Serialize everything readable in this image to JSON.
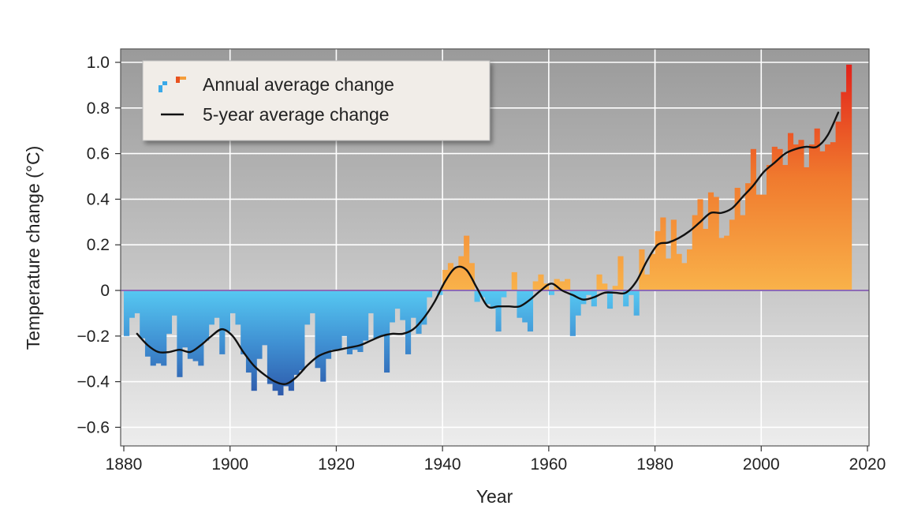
{
  "chart_data": {
    "type": "bar",
    "title": "",
    "xlabel": "Year",
    "ylabel": "Temperature change (°C)",
    "xlim": [
      1880,
      2020
    ],
    "ylim": [
      -0.65,
      1.05
    ],
    "x_ticks": [
      1880,
      1900,
      1920,
      1940,
      1960,
      1980,
      2000,
      2020
    ],
    "x_tick_labels": [
      "1880",
      "1900",
      "1920",
      "1940",
      "1960",
      "1980",
      "2000",
      "2020"
    ],
    "y_ticks": [
      -0.6,
      -0.4,
      -0.2,
      0,
      0.2,
      0.4,
      0.6,
      0.8,
      1.0
    ],
    "y_tick_labels": [
      "−0.6",
      "−0.4",
      "−0.2",
      "0",
      "0.2",
      "0.4",
      "0.6",
      "0.8",
      "1.0"
    ],
    "grid": true,
    "legend_position": "top-left",
    "colors": {
      "plot_background_top": "#9c9c9c",
      "plot_background_bottom": "#ececec",
      "grid": "#ffffff",
      "zero_line": "#8e6bb5",
      "negative_light": "#52c3ef",
      "negative_dark": "#2d5fae",
      "positive_light": "#f8ac45",
      "positive_dark": "#e4261b",
      "smooth_line": "#111111"
    },
    "series": [
      {
        "name": "Annual average change",
        "kind": "bar",
        "x": [
          1880,
          1881,
          1882,
          1883,
          1884,
          1885,
          1886,
          1887,
          1888,
          1889,
          1890,
          1891,
          1892,
          1893,
          1894,
          1895,
          1896,
          1897,
          1898,
          1899,
          1900,
          1901,
          1902,
          1903,
          1904,
          1905,
          1906,
          1907,
          1908,
          1909,
          1910,
          1911,
          1912,
          1913,
          1914,
          1915,
          1916,
          1917,
          1918,
          1919,
          1920,
          1921,
          1922,
          1923,
          1924,
          1925,
          1926,
          1927,
          1928,
          1929,
          1930,
          1931,
          1932,
          1933,
          1934,
          1935,
          1936,
          1937,
          1938,
          1939,
          1940,
          1941,
          1942,
          1943,
          1944,
          1945,
          1946,
          1947,
          1948,
          1949,
          1950,
          1951,
          1952,
          1953,
          1954,
          1955,
          1956,
          1957,
          1958,
          1959,
          1960,
          1961,
          1962,
          1963,
          1964,
          1965,
          1966,
          1967,
          1968,
          1969,
          1970,
          1971,
          1972,
          1973,
          1974,
          1975,
          1976,
          1977,
          1978,
          1979,
          1980,
          1981,
          1982,
          1983,
          1984,
          1985,
          1986,
          1987,
          1988,
          1989,
          1990,
          1991,
          1992,
          1993,
          1994,
          1995,
          1996,
          1997,
          1998,
          1999,
          2000,
          2001,
          2002,
          2003,
          2004,
          2005,
          2006,
          2007,
          2008,
          2009,
          2010,
          2011,
          2012,
          2013,
          2014,
          2015,
          2016
        ],
        "values": [
          -0.2,
          -0.12,
          -0.1,
          -0.21,
          -0.29,
          -0.33,
          -0.32,
          -0.33,
          -0.19,
          -0.11,
          -0.38,
          -0.25,
          -0.3,
          -0.31,
          -0.33,
          -0.22,
          -0.15,
          -0.12,
          -0.28,
          -0.18,
          -0.1,
          -0.15,
          -0.28,
          -0.36,
          -0.44,
          -0.3,
          -0.24,
          -0.41,
          -0.44,
          -0.46,
          -0.42,
          -0.44,
          -0.37,
          -0.35,
          -0.15,
          -0.1,
          -0.34,
          -0.4,
          -0.3,
          -0.26,
          -0.26,
          -0.2,
          -0.28,
          -0.26,
          -0.27,
          -0.22,
          -0.1,
          -0.21,
          -0.2,
          -0.36,
          -0.14,
          -0.08,
          -0.13,
          -0.28,
          -0.12,
          -0.19,
          -0.15,
          -0.03,
          0,
          -0.02,
          0.09,
          0.12,
          0.1,
          0.15,
          0.24,
          0.12,
          -0.05,
          -0.03,
          -0.06,
          -0.08,
          -0.18,
          -0.03,
          0,
          0.08,
          -0.12,
          -0.14,
          -0.18,
          0.04,
          0.07,
          0.03,
          -0.02,
          0.05,
          0.04,
          0.05,
          -0.2,
          -0.11,
          -0.06,
          -0.02,
          -0.07,
          0.07,
          0.03,
          -0.08,
          0.02,
          0.15,
          -0.07,
          -0.02,
          -0.11,
          0.18,
          0.07,
          0.16,
          0.26,
          0.32,
          0.14,
          0.31,
          0.16,
          0.12,
          0.18,
          0.33,
          0.4,
          0.27,
          0.43,
          0.41,
          0.23,
          0.24,
          0.31,
          0.45,
          0.33,
          0.47,
          0.62,
          0.42,
          0.42,
          0.55,
          0.63,
          0.62,
          0.55,
          0.69,
          0.64,
          0.66,
          0.54,
          0.64,
          0.71,
          0.61,
          0.64,
          0.65,
          0.74,
          0.87,
          0.99
        ]
      },
      {
        "name": "5-year average change",
        "kind": "line",
        "x": [
          1882,
          1884,
          1886,
          1888,
          1890,
          1892,
          1894,
          1896,
          1898,
          1900,
          1902,
          1904,
          1906,
          1908,
          1910,
          1912,
          1914,
          1916,
          1918,
          1920,
          1922,
          1924,
          1926,
          1928,
          1930,
          1932,
          1934,
          1936,
          1938,
          1940,
          1942,
          1944,
          1946,
          1948,
          1950,
          1952,
          1954,
          1956,
          1958,
          1960,
          1962,
          1964,
          1966,
          1968,
          1970,
          1972,
          1974,
          1976,
          1978,
          1980,
          1982,
          1984,
          1986,
          1988,
          1990,
          1992,
          1994,
          1996,
          1998,
          2000,
          2002,
          2004,
          2006,
          2008,
          2010,
          2012,
          2014
        ],
        "values": [
          -0.19,
          -0.24,
          -0.27,
          -0.27,
          -0.26,
          -0.27,
          -0.24,
          -0.2,
          -0.17,
          -0.2,
          -0.27,
          -0.33,
          -0.37,
          -0.4,
          -0.41,
          -0.38,
          -0.33,
          -0.29,
          -0.27,
          -0.26,
          -0.25,
          -0.24,
          -0.22,
          -0.2,
          -0.19,
          -0.19,
          -0.17,
          -0.12,
          -0.05,
          0.04,
          0.1,
          0.09,
          0.01,
          -0.07,
          -0.07,
          -0.07,
          -0.07,
          -0.04,
          0,
          0.03,
          0,
          -0.02,
          -0.04,
          -0.03,
          -0.01,
          -0.01,
          -0.01,
          0.04,
          0.13,
          0.2,
          0.21,
          0.23,
          0.26,
          0.3,
          0.34,
          0.34,
          0.36,
          0.41,
          0.46,
          0.52,
          0.56,
          0.6,
          0.62,
          0.63,
          0.63,
          0.68,
          0.78
        ]
      }
    ],
    "legend": [
      {
        "label": "Annual average change",
        "icon": "bar-swatch"
      },
      {
        "label": "5-year average change",
        "icon": "line-swatch"
      }
    ]
  }
}
